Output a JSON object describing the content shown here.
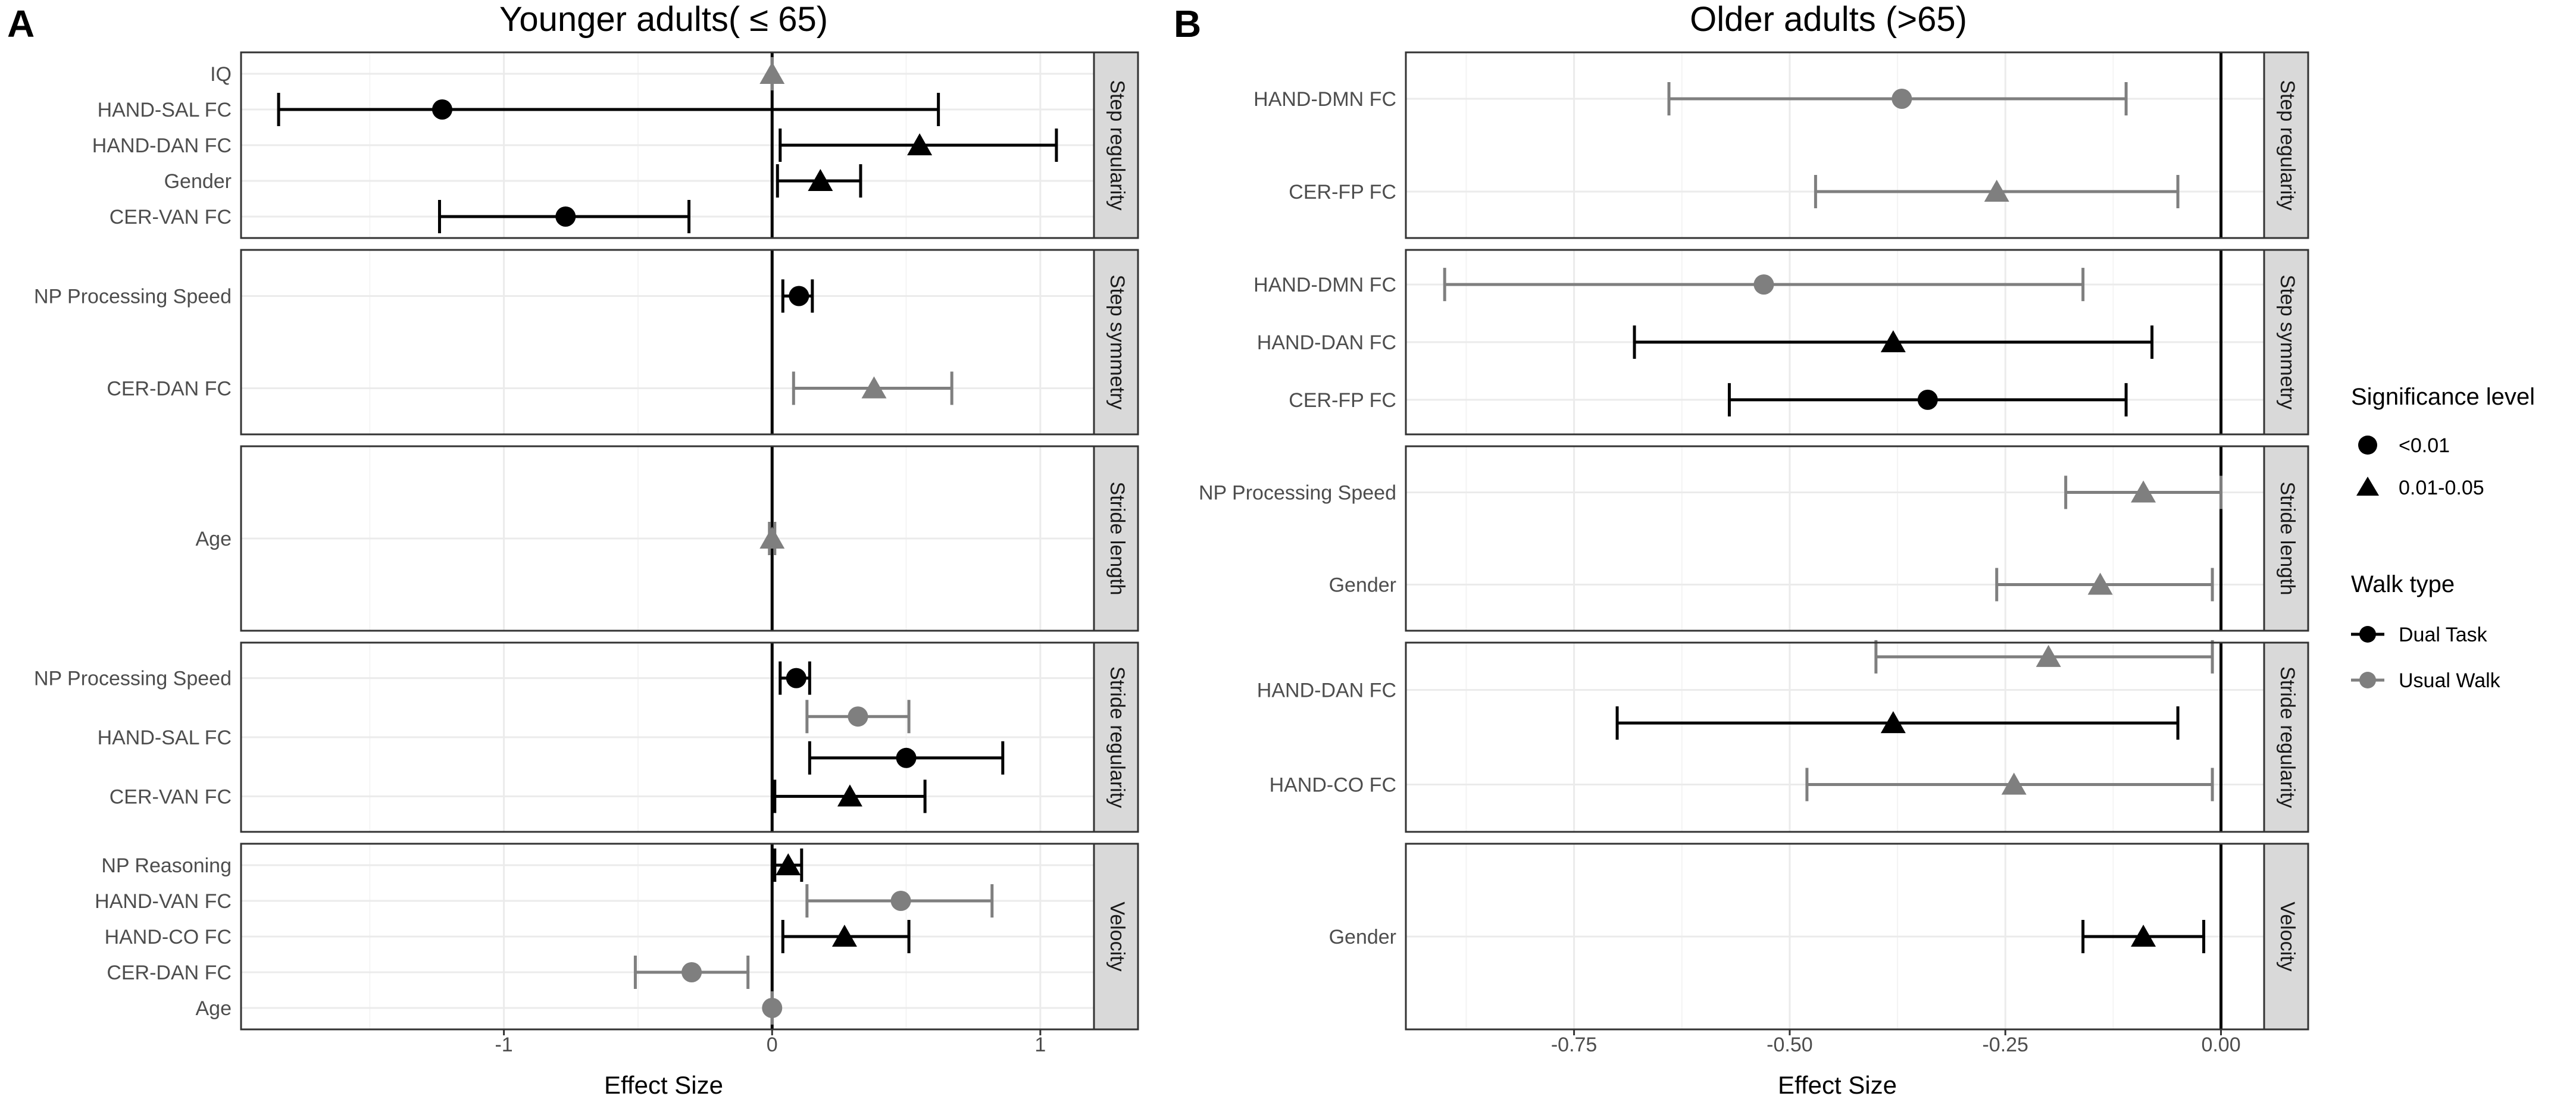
{
  "colors": {
    "dual_task": "#000000",
    "usual_walk": "#7f7f7f"
  },
  "panels": [
    {
      "letter": "A",
      "title": "Younger adults( ≤ 65)"
    },
    {
      "letter": "B",
      "title": "Older adults (>65)"
    }
  ],
  "legend": {
    "significance_title": "Significance level",
    "significance_items": [
      {
        "label": "<0.01",
        "shape": "circle"
      },
      {
        "label": "0.01-0.05",
        "shape": "triangle"
      }
    ],
    "walk_title": "Walk type",
    "walk_items": [
      {
        "label": "Dual Task",
        "color": "#000000"
      },
      {
        "label": "Usual Walk",
        "color": "#7f7f7f"
      }
    ]
  },
  "chart_data": [
    {
      "type": "forest",
      "title": "Younger adults( ≤ 65)",
      "panel_letter": "A",
      "xlabel": "Effect Size",
      "xlim": [
        -1.98,
        1.2
      ],
      "xticks": [
        -1,
        0,
        1
      ],
      "xtick_labels": [
        "-1",
        "0",
        "1"
      ],
      "facets": [
        {
          "name": "Step regularity",
          "labels": [
            "IQ",
            "HAND-SAL FC",
            "HAND-DAN FC",
            "Gender",
            "CER-VAN FC"
          ],
          "rows": [
            {
              "label": "IQ",
              "walk": "Usual Walk",
              "sig": "0.01-0.05",
              "estimate": 0.0,
              "lo": 0.0,
              "hi": 0.0
            },
            {
              "label": "HAND-SAL FC",
              "walk": "Dual Task",
              "sig": "<0.01",
              "estimate": -1.23,
              "lo": -1.84,
              "hi": 0.62
            },
            {
              "label": "HAND-DAN FC",
              "walk": "Dual Task",
              "sig": "0.01-0.05",
              "estimate": 0.55,
              "lo": 0.03,
              "hi": 1.06
            },
            {
              "label": "Gender",
              "walk": "Dual Task",
              "sig": "0.01-0.05",
              "estimate": 0.18,
              "lo": 0.02,
              "hi": 0.33
            },
            {
              "label": "CER-VAN FC",
              "walk": "Dual Task",
              "sig": "<0.01",
              "estimate": -0.77,
              "lo": -1.24,
              "hi": -0.31
            }
          ]
        },
        {
          "name": "Step symmetry",
          "labels": [
            "NP Processing Speed",
            "CER-DAN FC"
          ],
          "rows": [
            {
              "label": "NP Processing Speed",
              "walk": "Dual Task",
              "sig": "<0.01",
              "estimate": 0.1,
              "lo": 0.04,
              "hi": 0.15
            },
            {
              "label": "CER-DAN FC",
              "walk": "Usual Walk",
              "sig": "0.01-0.05",
              "estimate": 0.38,
              "lo": 0.08,
              "hi": 0.67
            }
          ]
        },
        {
          "name": "Stride length",
          "labels": [
            "Age"
          ],
          "rows": [
            {
              "label": "Age",
              "walk": "Usual Walk",
              "sig": "0.01-0.05",
              "estimate": 0.0,
              "lo": -0.01,
              "hi": 0.01
            }
          ]
        },
        {
          "name": "Stride regularity",
          "labels": [
            "NP Processing Speed",
            "HAND-SAL FC",
            "CER-VAN FC"
          ],
          "rows": [
            {
              "label": "NP Processing Speed",
              "walk": "Dual Task",
              "sig": "<0.01",
              "estimate": 0.09,
              "lo": 0.03,
              "hi": 0.14
            },
            {
              "label": "HAND-SAL FC",
              "walk": "Usual Walk",
              "sig": "<0.01",
              "estimate": 0.32,
              "lo": 0.13,
              "hi": 0.51
            },
            {
              "label": "HAND-SAL FC",
              "walk": "Dual Task",
              "sig": "<0.01",
              "estimate": 0.5,
              "lo": 0.14,
              "hi": 0.86
            },
            {
              "label": "CER-VAN FC",
              "walk": "Dual Task",
              "sig": "0.01-0.05",
              "estimate": 0.29,
              "lo": 0.01,
              "hi": 0.57
            }
          ]
        },
        {
          "name": "Velocity",
          "labels": [
            "NP Reasoning",
            "HAND-VAN FC",
            "HAND-CO FC",
            "CER-DAN FC",
            "Age"
          ],
          "rows": [
            {
              "label": "NP Reasoning",
              "walk": "Dual Task",
              "sig": "0.01-0.05",
              "estimate": 0.06,
              "lo": 0.01,
              "hi": 0.11
            },
            {
              "label": "HAND-VAN FC",
              "walk": "Usual Walk",
              "sig": "<0.01",
              "estimate": 0.48,
              "lo": 0.13,
              "hi": 0.82
            },
            {
              "label": "HAND-CO FC",
              "walk": "Dual Task",
              "sig": "0.01-0.05",
              "estimate": 0.27,
              "lo": 0.04,
              "hi": 0.51
            },
            {
              "label": "CER-DAN FC",
              "walk": "Usual Walk",
              "sig": "<0.01",
              "estimate": -0.3,
              "lo": -0.51,
              "hi": -0.09
            },
            {
              "label": "Age",
              "walk": "Usual Walk",
              "sig": "<0.01",
              "estimate": 0.0,
              "lo": 0.0,
              "hi": 0.0
            }
          ]
        }
      ]
    },
    {
      "type": "forest",
      "title": "Older adults (>65)",
      "panel_letter": "B",
      "xlabel": "Effect Size",
      "xlim": [
        -0.945,
        0.05
      ],
      "xticks": [
        -0.75,
        -0.5,
        -0.25,
        0.0
      ],
      "xtick_labels": [
        "-0.75",
        "-0.50",
        "-0.25",
        "0.00"
      ],
      "facets": [
        {
          "name": "Step regularity",
          "labels": [
            "HAND-DMN FC",
            "CER-FP FC"
          ],
          "rows": [
            {
              "label": "HAND-DMN FC",
              "walk": "Usual Walk",
              "sig": "<0.01",
              "estimate": -0.37,
              "lo": -0.64,
              "hi": -0.11
            },
            {
              "label": "CER-FP FC",
              "walk": "Usual Walk",
              "sig": "0.01-0.05",
              "estimate": -0.26,
              "lo": -0.47,
              "hi": -0.05
            }
          ]
        },
        {
          "name": "Step symmetry",
          "labels": [
            "HAND-DMN FC",
            "HAND-DAN FC",
            "CER-FP FC"
          ],
          "rows": [
            {
              "label": "HAND-DMN FC",
              "walk": "Usual Walk",
              "sig": "<0.01",
              "estimate": -0.53,
              "lo": -0.9,
              "hi": -0.16
            },
            {
              "label": "HAND-DAN FC",
              "walk": "Dual Task",
              "sig": "0.01-0.05",
              "estimate": -0.38,
              "lo": -0.68,
              "hi": -0.08
            },
            {
              "label": "CER-FP FC",
              "walk": "Dual Task",
              "sig": "<0.01",
              "estimate": -0.34,
              "lo": -0.57,
              "hi": -0.11
            }
          ]
        },
        {
          "name": "Stride length",
          "labels": [
            "NP Processing Speed",
            "Gender"
          ],
          "rows": [
            {
              "label": "NP Processing Speed",
              "walk": "Usual Walk",
              "sig": "0.01-0.05",
              "estimate": -0.09,
              "lo": -0.18,
              "hi": 0.0
            },
            {
              "label": "Gender",
              "walk": "Usual Walk",
              "sig": "0.01-0.05",
              "estimate": -0.14,
              "lo": -0.26,
              "hi": -0.01
            }
          ]
        },
        {
          "name": "Stride regularity",
          "labels": [
            "HAND-DAN FC",
            "HAND-CO FC"
          ],
          "rows": [
            {
              "label": "HAND-DAN FC",
              "walk": "Usual Walk",
              "sig": "0.01-0.05",
              "estimate": -0.2,
              "lo": -0.4,
              "hi": -0.01
            },
            {
              "label": "HAND-DAN FC",
              "walk": "Dual Task",
              "sig": "0.01-0.05",
              "estimate": -0.38,
              "lo": -0.7,
              "hi": -0.05
            },
            {
              "label": "HAND-CO FC",
              "walk": "Usual Walk",
              "sig": "0.01-0.05",
              "estimate": -0.24,
              "lo": -0.48,
              "hi": -0.01
            }
          ]
        },
        {
          "name": "Velocity",
          "labels": [
            "Gender"
          ],
          "rows": [
            {
              "label": "Gender",
              "walk": "Dual Task",
              "sig": "0.01-0.05",
              "estimate": -0.09,
              "lo": -0.16,
              "hi": -0.02
            }
          ]
        }
      ]
    }
  ]
}
